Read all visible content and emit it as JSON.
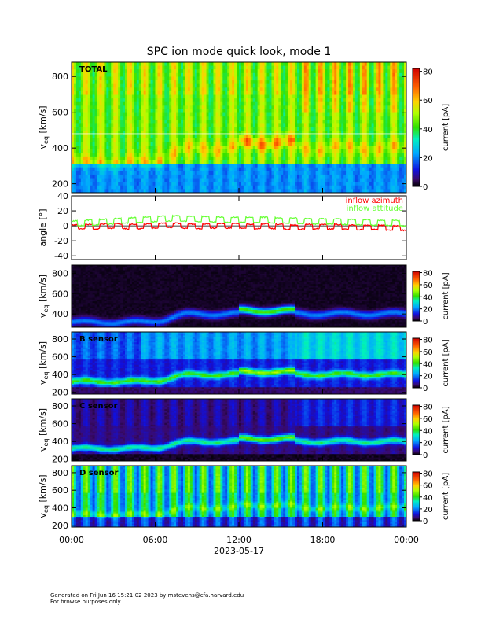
{
  "page": {
    "title": "SPC ion mode quick look, mode 1",
    "footer_line1": "Generated on Fri Jun 16 15:21:02 2023 by mstevens@cfa.harvard.edu",
    "footer_line2": "For browse purposes only."
  },
  "colors": {
    "azimuth": "#ff0000",
    "attitude": "#66ff33",
    "frame": "#000000"
  },
  "chart_data": [
    {
      "type": "heatmap",
      "panel": "total",
      "label": "TOTAL",
      "ylabel_main": "v",
      "ylabel_sub": "eq",
      "ylabel_units": "[km/s]",
      "ylim": [
        150,
        880
      ],
      "yticks": [
        200,
        400,
        600,
        800
      ],
      "cbar_label": "current [pA]",
      "cbar_range": [
        0,
        82
      ],
      "cbar_ticks": [
        0,
        20,
        40,
        60,
        80
      ]
    },
    {
      "type": "line",
      "panel": "angle",
      "ylabel": "angle [°]",
      "ylim": [
        -45,
        40
      ],
      "yticks": [
        -40,
        -20,
        0,
        20,
        40
      ],
      "series": [
        {
          "name": "inflow azimuth",
          "color": "#ff0000",
          "hours": [
            0,
            1,
            2,
            3,
            4,
            5,
            6,
            7,
            8,
            9,
            10,
            11,
            12,
            13,
            14,
            15,
            16,
            17,
            18,
            19,
            20,
            21,
            22,
            23,
            24
          ],
          "values": [
            -2,
            -1,
            -1,
            0,
            -1,
            -1,
            0,
            1,
            0,
            -1,
            0,
            0,
            0,
            -1,
            0,
            -1,
            -2,
            -1,
            -1,
            -1,
            -2,
            -2,
            -2,
            -3,
            -3
          ]
        },
        {
          "name": "inflow attitude",
          "color": "#66ff33",
          "hours": [
            0,
            1,
            2,
            3,
            4,
            5,
            6,
            7,
            8,
            9,
            10,
            11,
            12,
            13,
            14,
            15,
            16,
            17,
            18,
            19,
            20,
            21,
            22,
            23,
            24
          ],
          "values": [
            3,
            4,
            5,
            6,
            7,
            8,
            9,
            10,
            10,
            9,
            9,
            8,
            8,
            8,
            8,
            7,
            7,
            6,
            6,
            6,
            5,
            5,
            4,
            4,
            3
          ]
        }
      ]
    },
    {
      "type": "heatmap",
      "panel": "a-sensor",
      "label": "",
      "ylabel_main": "v",
      "ylabel_sub": "eq",
      "ylabel_units": "[km/s]",
      "ylim": [
        270,
        880
      ],
      "yticks": [
        400,
        600,
        800
      ],
      "cbar_label": "current [pA]",
      "cbar_range": [
        0,
        82
      ],
      "cbar_ticks": [
        0,
        20,
        40,
        60,
        80
      ]
    },
    {
      "type": "heatmap",
      "panel": "b-sensor",
      "label": "B sensor",
      "ylabel_main": "v",
      "ylabel_sub": "eq",
      "ylabel_units": "[km/s]",
      "ylim": [
        180,
        880
      ],
      "yticks": [
        200,
        400,
        600,
        800
      ],
      "cbar_label": "current [pA]",
      "cbar_range": [
        0,
        82
      ],
      "cbar_ticks": [
        0,
        20,
        40,
        60,
        80
      ]
    },
    {
      "type": "heatmap",
      "panel": "c-sensor",
      "label": "C sensor",
      "ylabel_main": "v",
      "ylabel_sub": "eq",
      "ylabel_units": "[km/s]",
      "ylim": [
        180,
        880
      ],
      "yticks": [
        200,
        400,
        600,
        800
      ],
      "cbar_label": "current [pA]",
      "cbar_range": [
        0,
        82
      ],
      "cbar_ticks": [
        0,
        20,
        40,
        60,
        80
      ]
    },
    {
      "type": "heatmap",
      "panel": "d-sensor",
      "label": "D sensor",
      "ylabel_main": "v",
      "ylabel_sub": "eq",
      "ylabel_units": "[km/s]",
      "ylim": [
        180,
        880
      ],
      "yticks": [
        200,
        400,
        600,
        800
      ],
      "cbar_label": "current [pA]",
      "cbar_range": [
        0,
        82
      ],
      "cbar_ticks": [
        0,
        20,
        40,
        60,
        80
      ]
    }
  ],
  "xaxis": {
    "tick_labels": [
      "00:00",
      "06:00",
      "12:00",
      "18:00",
      "00:00"
    ],
    "tick_hours": [
      0,
      6,
      12,
      18,
      24
    ],
    "date_label": "2023-05-17"
  }
}
